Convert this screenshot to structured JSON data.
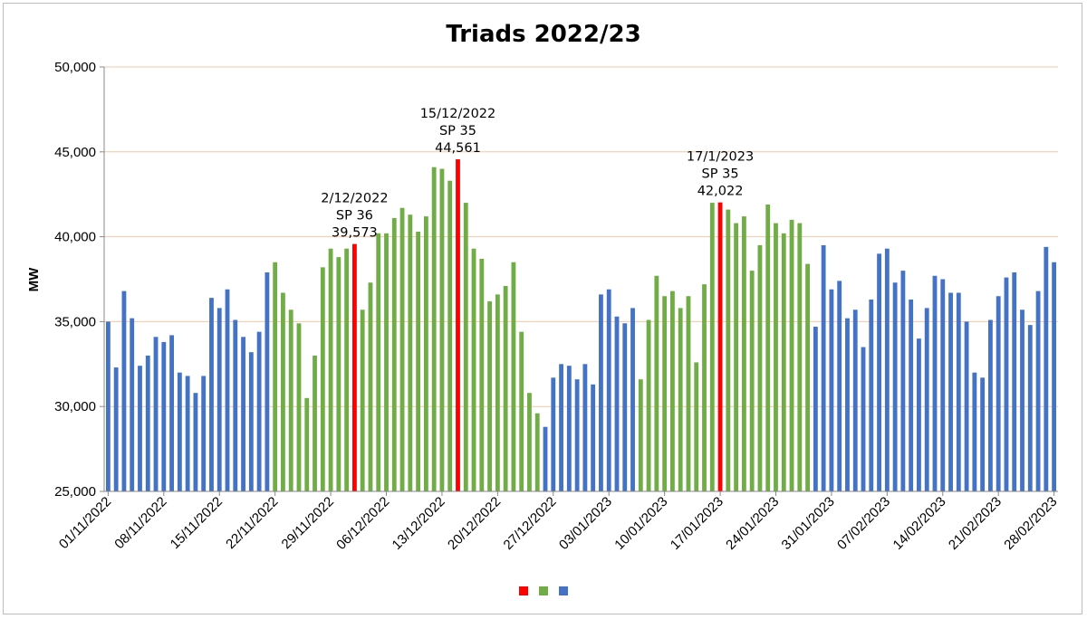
{
  "chart_data": {
    "type": "bar",
    "title": "Triads 2022/23",
    "ylabel": "MW",
    "xlabel": "",
    "ylim": [
      25000,
      50000
    ],
    "y_ticks": [
      "25,000",
      "30,000",
      "35,000",
      "40,000",
      "45,000",
      "50,000"
    ],
    "grid": true,
    "x_tick_labels": [
      "01/11/2022",
      "08/11/2022",
      "15/11/2022",
      "22/11/2022",
      "29/11/2022",
      "06/12/2022",
      "13/12/2022",
      "20/12/2022",
      "27/12/2022",
      "03/01/2023",
      "10/01/2023",
      "17/01/2023",
      "24/01/2023",
      "31/01/2023",
      "07/02/2023",
      "14/02/2023",
      "21/02/2023",
      "28/02/2023"
    ],
    "categories": [
      "01/11/2022",
      "02/11/2022",
      "03/11/2022",
      "04/11/2022",
      "05/11/2022",
      "06/11/2022",
      "07/11/2022",
      "08/11/2022",
      "09/11/2022",
      "10/11/2022",
      "11/11/2022",
      "12/11/2022",
      "13/11/2022",
      "14/11/2022",
      "15/11/2022",
      "16/11/2022",
      "17/11/2022",
      "18/11/2022",
      "19/11/2022",
      "20/11/2022",
      "21/11/2022",
      "22/11/2022",
      "23/11/2022",
      "24/11/2022",
      "25/11/2022",
      "26/11/2022",
      "27/11/2022",
      "28/11/2022",
      "29/11/2022",
      "30/11/2022",
      "01/12/2022",
      "02/12/2022",
      "03/12/2022",
      "04/12/2022",
      "05/12/2022",
      "06/12/2022",
      "07/12/2022",
      "08/12/2022",
      "09/12/2022",
      "10/12/2022",
      "11/12/2022",
      "12/12/2022",
      "13/12/2022",
      "14/12/2022",
      "15/12/2022",
      "16/12/2022",
      "17/12/2022",
      "18/12/2022",
      "19/12/2022",
      "20/12/2022",
      "21/12/2022",
      "22/12/2022",
      "23/12/2022",
      "24/12/2022",
      "25/12/2022",
      "26/12/2022",
      "27/12/2022",
      "28/12/2022",
      "29/12/2022",
      "30/12/2022",
      "31/12/2022",
      "01/01/2023",
      "02/01/2023",
      "03/01/2023",
      "04/01/2023",
      "05/01/2023",
      "06/01/2023",
      "07/01/2023",
      "08/01/2023",
      "09/01/2023",
      "10/01/2023",
      "11/01/2023",
      "12/01/2023",
      "13/01/2023",
      "14/01/2023",
      "15/01/2023",
      "16/01/2023",
      "17/01/2023",
      "18/01/2023",
      "19/01/2023",
      "20/01/2023",
      "21/01/2023",
      "22/01/2023",
      "23/01/2023",
      "24/01/2023",
      "25/01/2023",
      "26/01/2023",
      "27/01/2023",
      "28/01/2023",
      "29/01/2023",
      "30/01/2023",
      "31/01/2023",
      "01/02/2023",
      "02/02/2023",
      "03/02/2023",
      "04/02/2023",
      "05/02/2023",
      "06/02/2023",
      "07/02/2023",
      "08/02/2023",
      "09/02/2023",
      "10/02/2023",
      "11/02/2023",
      "12/02/2023",
      "13/02/2023",
      "14/02/2023",
      "15/02/2023",
      "16/02/2023",
      "17/02/2023",
      "18/02/2023",
      "19/02/2023",
      "20/02/2023",
      "21/02/2023",
      "22/02/2023",
      "23/02/2023",
      "24/02/2023",
      "25/02/2023",
      "26/02/2023",
      "27/02/2023",
      "28/02/2023"
    ],
    "values": [
      35000,
      32300,
      36800,
      35200,
      32400,
      33000,
      34100,
      33800,
      34200,
      32000,
      31800,
      30800,
      31800,
      36400,
      35800,
      36900,
      35100,
      34100,
      33200,
      34400,
      37900,
      38500,
      36700,
      35700,
      34900,
      30500,
      33000,
      38200,
      39300,
      38800,
      39300,
      39573,
      35700,
      37300,
      40200,
      40200,
      41100,
      41700,
      41300,
      40300,
      41200,
      44100,
      44000,
      43300,
      44561,
      42000,
      39300,
      38700,
      36200,
      36600,
      37100,
      38500,
      34400,
      30800,
      29600,
      28800,
      31700,
      32500,
      32400,
      31600,
      32500,
      31300,
      36600,
      36900,
      35300,
      34900,
      35800,
      31600,
      35100,
      37700,
      36500,
      36800,
      35800,
      36500,
      32600,
      37200,
      42000,
      42022,
      41600,
      40800,
      41200,
      38000,
      39500,
      41900,
      40800,
      40200,
      41000,
      40800,
      38400,
      34700,
      39500,
      36900,
      37400,
      35200,
      35700,
      33500,
      36300,
      39000,
      39300,
      37300,
      38000,
      36300,
      34000,
      35800,
      37700,
      37500,
      36700,
      36700,
      35000,
      32000,
      31700,
      35100,
      36500,
      37600,
      37900,
      35700,
      34800,
      36800,
      39400,
      38500
    ],
    "colors": [
      "#4472c4",
      "#4472c4",
      "#4472c4",
      "#4472c4",
      "#4472c4",
      "#4472c4",
      "#4472c4",
      "#4472c4",
      "#4472c4",
      "#4472c4",
      "#4472c4",
      "#4472c4",
      "#4472c4",
      "#4472c4",
      "#4472c4",
      "#4472c4",
      "#4472c4",
      "#4472c4",
      "#4472c4",
      "#4472c4",
      "#4472c4",
      "#70ad47",
      "#70ad47",
      "#70ad47",
      "#70ad47",
      "#70ad47",
      "#70ad47",
      "#70ad47",
      "#70ad47",
      "#70ad47",
      "#70ad47",
      "#ff0000",
      "#70ad47",
      "#70ad47",
      "#70ad47",
      "#70ad47",
      "#70ad47",
      "#70ad47",
      "#70ad47",
      "#70ad47",
      "#70ad47",
      "#70ad47",
      "#70ad47",
      "#70ad47",
      "#ff0000",
      "#70ad47",
      "#70ad47",
      "#70ad47",
      "#70ad47",
      "#70ad47",
      "#70ad47",
      "#70ad47",
      "#70ad47",
      "#70ad47",
      "#70ad47",
      "#4472c4",
      "#4472c4",
      "#4472c4",
      "#4472c4",
      "#4472c4",
      "#4472c4",
      "#4472c4",
      "#4472c4",
      "#4472c4",
      "#4472c4",
      "#4472c4",
      "#4472c4",
      "#70ad47",
      "#70ad47",
      "#70ad47",
      "#70ad47",
      "#70ad47",
      "#70ad47",
      "#70ad47",
      "#70ad47",
      "#70ad47",
      "#70ad47",
      "#ff0000",
      "#70ad47",
      "#70ad47",
      "#70ad47",
      "#70ad47",
      "#70ad47",
      "#70ad47",
      "#70ad47",
      "#70ad47",
      "#70ad47",
      "#70ad47",
      "#70ad47",
      "#4472c4",
      "#4472c4",
      "#4472c4",
      "#4472c4",
      "#4472c4",
      "#4472c4",
      "#4472c4",
      "#4472c4",
      "#4472c4",
      "#4472c4",
      "#4472c4",
      "#4472c4",
      "#4472c4",
      "#4472c4",
      "#4472c4",
      "#4472c4",
      "#4472c4",
      "#4472c4",
      "#4472c4",
      "#4472c4",
      "#4472c4",
      "#4472c4",
      "#4472c4",
      "#4472c4",
      "#4472c4",
      "#4472c4",
      "#4472c4",
      "#4472c4",
      "#4472c4",
      "#4472c4",
      "#4472c4"
    ],
    "annotations": [
      {
        "lines": [
          "2/12/2022",
          "SP 36",
          "39,573"
        ],
        "category": "02/12/2022",
        "value": 39573
      },
      {
        "lines": [
          "15/12/2022",
          "SP 35",
          "44,561"
        ],
        "category": "15/12/2022",
        "value": 44561
      },
      {
        "lines": [
          "17/1/2023",
          "SP 35",
          "42,022"
        ],
        "category": "17/01/2023",
        "value": 42022
      }
    ],
    "legend": {
      "placement": "bottom-center",
      "swatches": [
        "#ff0000",
        "#70ad47",
        "#4472c4"
      ]
    }
  }
}
